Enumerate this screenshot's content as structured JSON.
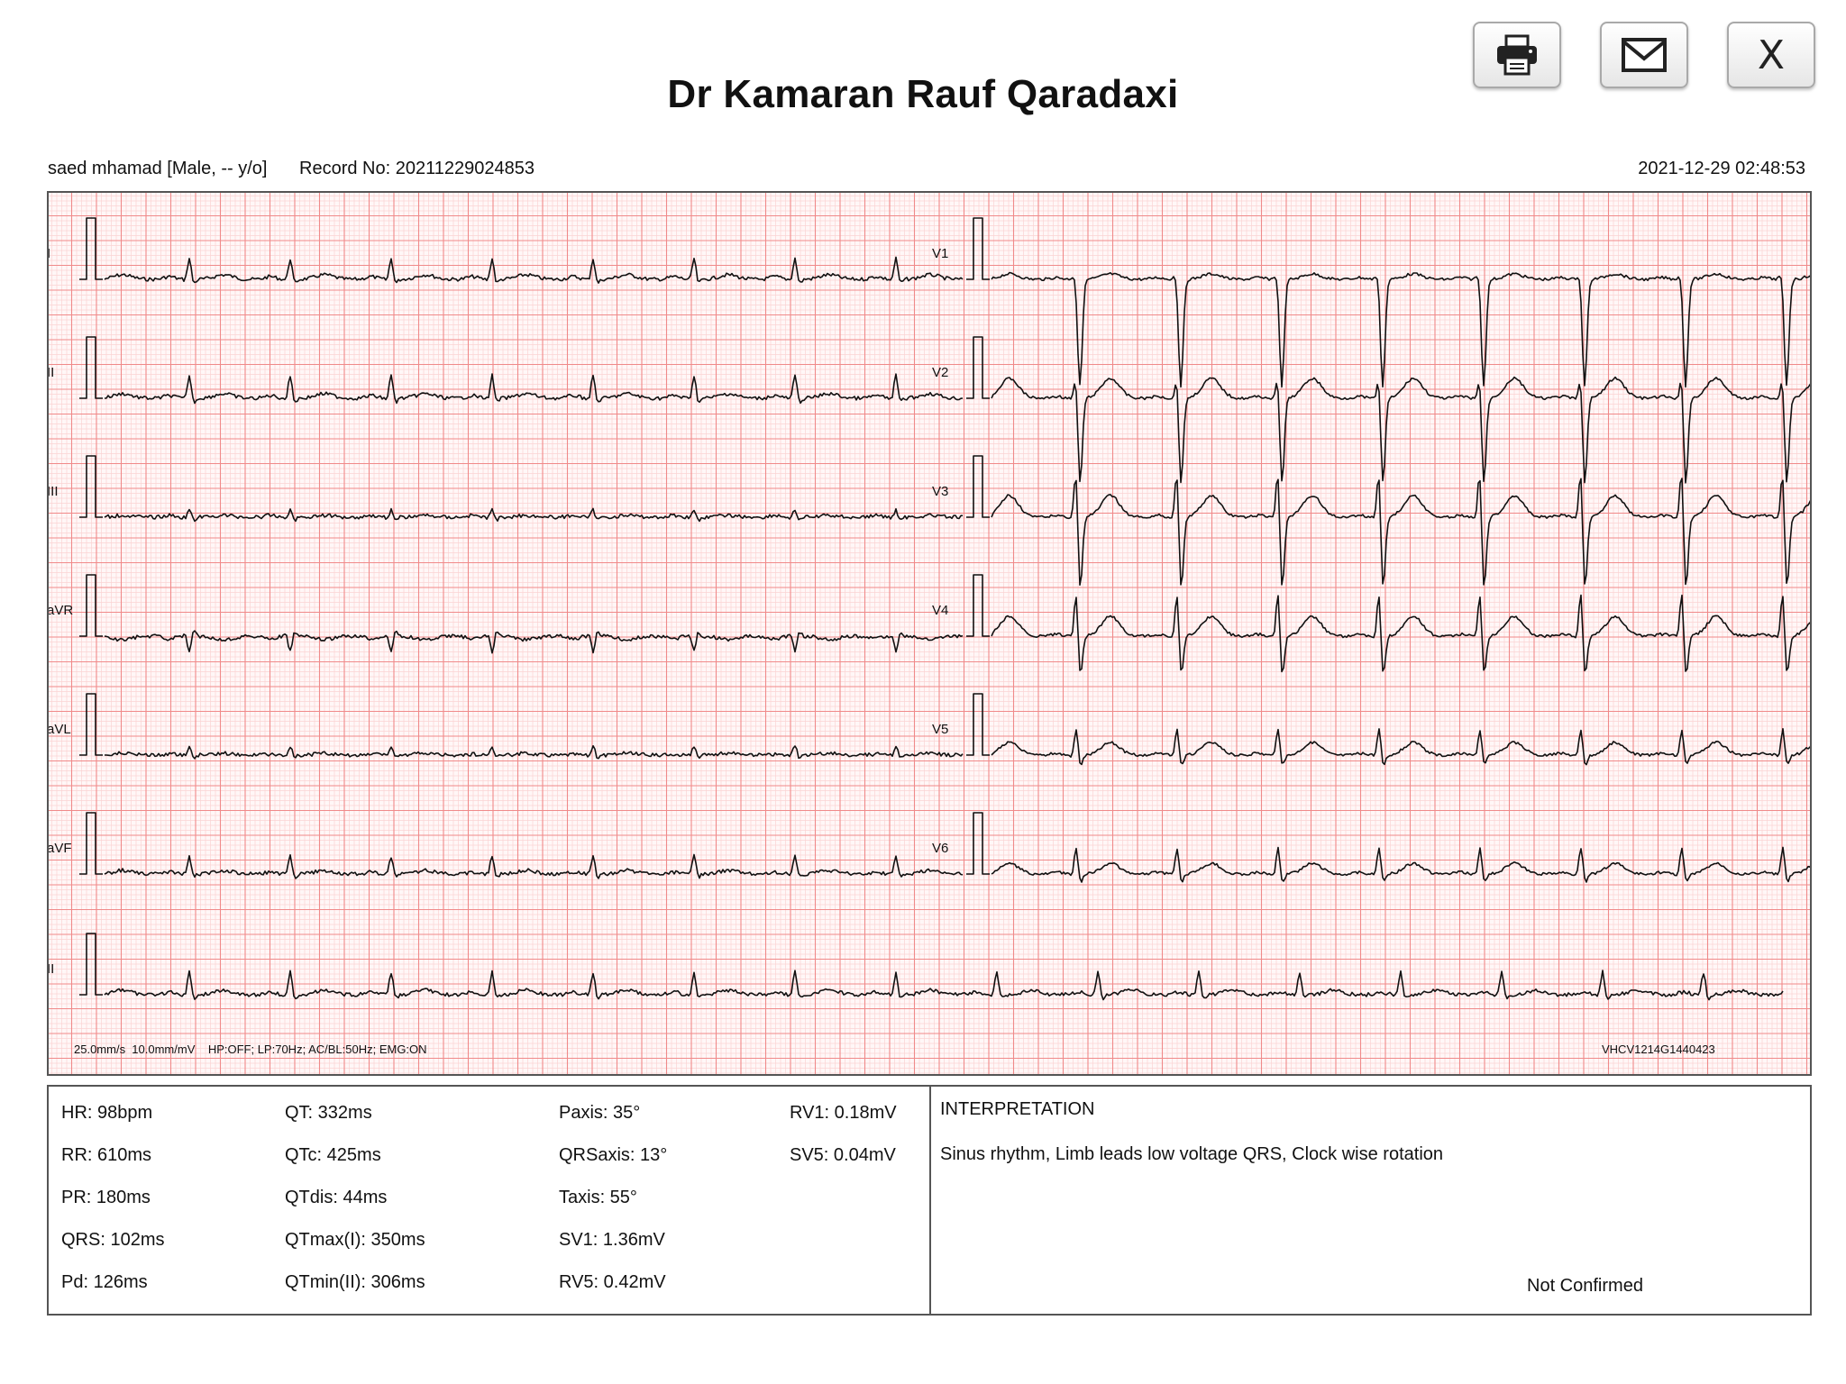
{
  "header": {
    "title": "Dr Kamaran Rauf Qaradaxi",
    "print_icon": "printer-icon",
    "email_icon": "envelope-icon",
    "close_label": "X"
  },
  "patient": {
    "info": "saed mhamad [Male, -- y/o]",
    "record": "Record No: 20211229024853",
    "datetime": "2021-12-29 02:48:53"
  },
  "ecg": {
    "leads_left": [
      "I",
      "II",
      "III",
      "aVR",
      "aVL",
      "aVF"
    ],
    "leads_right": [
      "V1",
      "V2",
      "V3",
      "V4",
      "V5",
      "V6"
    ],
    "rhythm_lead": "II",
    "settings": "25.0mm/s  10.0mm/mV    HP:OFF; LP:70Hz; AC/BL:50Hz; EMG:ON",
    "device_id": "VHCV1214G1440423",
    "colors": {
      "grid_major": "#f08a8a",
      "grid_minor": "#fbd3d3",
      "trace": "#111111",
      "frame": "#555555"
    }
  },
  "stats": {
    "col1": [
      "HR: 98bpm",
      "RR: 610ms",
      "PR: 180ms",
      "QRS: 102ms",
      "Pd: 126ms"
    ],
    "col2": [
      "QT: 332ms",
      "QTc: 425ms",
      "QTdis: 44ms",
      "QTmax(I): 350ms",
      "QTmin(II): 306ms"
    ],
    "col3": [
      "Paxis: 35°",
      "QRSaxis: 13°",
      "Taxis: 55°",
      "SV1: 1.36mV",
      "RV5: 0.42mV"
    ],
    "col4": [
      "RV1: 0.18mV",
      "SV5: 0.04mV"
    ]
  },
  "interpretation": {
    "heading": "INTERPRETATION",
    "text": "Sinus rhythm, Limb leads low voltage QRS, Clock wise rotation",
    "status": "Not Confirmed"
  }
}
